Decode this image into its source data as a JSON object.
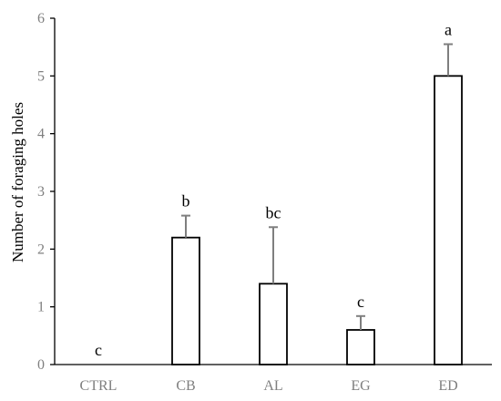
{
  "chart_data": {
    "type": "bar",
    "title": "",
    "xlabel": "",
    "ylabel": "Number of foraging holes",
    "ylim": [
      0,
      6
    ],
    "yticks": [
      0,
      1,
      2,
      3,
      4,
      5,
      6
    ],
    "grid": false,
    "legend": "none",
    "categories": [
      "CTRL",
      "CB",
      "AL",
      "EG",
      "ED"
    ],
    "series": [
      {
        "values": [
          0,
          2.2,
          1.4,
          0.6,
          5.0
        ],
        "error_upper": [
          0,
          0.38,
          0.98,
          0.24,
          0.55
        ]
      }
    ],
    "annotations": [
      "c",
      "b",
      "bc",
      "c",
      "a"
    ],
    "colors": {
      "bar_fill": "#ffffff",
      "bar_stroke": "#000000",
      "error_bar": "#7f7f7f",
      "axis": "#000000",
      "tick_label": "#7f7f7f"
    }
  }
}
